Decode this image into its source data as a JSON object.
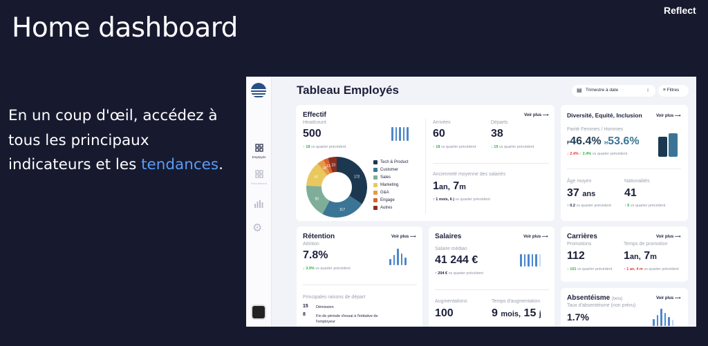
{
  "page": {
    "title": "Home dashboard",
    "brand": "Reflect",
    "tagline_prefix": "En un coup d'œil, accédez à tous les principaux indicateurs et les ",
    "tagline_highlight": "tendances",
    "tagline_suffix": "."
  },
  "app": {
    "title": "Tableau Employés",
    "period_select": "Trimestre à date",
    "filters": "Filtres",
    "sidebar": [
      {
        "label": "Employés",
        "icon": "grid-icon",
        "active": true
      },
      {
        "label": "Recrutement",
        "icon": "grid-icon",
        "active": false
      },
      {
        "label": "",
        "icon": "bar-chart-icon"
      },
      {
        "label": "",
        "icon": "gear-icon"
      }
    ],
    "see_more": "Voir plus",
    "vs": "vs quarter précédent",
    "effectif": {
      "title": "Effectif",
      "headcount_label": "Headcount",
      "headcount": "500",
      "headcount_delta": "18",
      "arrivals_label": "Arrivées",
      "arrivals": "60",
      "arrivals_delta": "18",
      "departures_label": "Départs",
      "departures": "38",
      "departures_delta": "19",
      "seniority_label": "Ancienneté moyenne des salariés",
      "seniority_num1": "1",
      "seniority_unit1": "an,",
      "seniority_num2": "7",
      "seniority_unit2": "m",
      "seniority_delta": "1 mois, 6 j",
      "donut": [
        {
          "label": "Tech & Product",
          "value": 172,
          "color": "#1c3850"
        },
        {
          "label": "Customer",
          "value": 117,
          "color": "#3b7596"
        },
        {
          "label": "Sales",
          "value": 90,
          "color": "#7fae98"
        },
        {
          "label": "Marketing",
          "value": 67,
          "color": "#e9c85e"
        },
        {
          "label": "G&A",
          "value": 18,
          "color": "#e79a45"
        },
        {
          "label": "Engage",
          "value": 13,
          "color": "#d9612f"
        },
        {
          "label": "Autres",
          "value": 23,
          "color": "#8c2f1f"
        }
      ]
    },
    "dei": {
      "title": "Diversité, Equité, Inclusion",
      "parity_label": "Parité Femmes / Hommes",
      "f_prefix": "F",
      "f_value": "46.4%",
      "h_prefix": "H",
      "h_value": "53.6%",
      "f_delta": "2.4%",
      "h_delta": "2.4%",
      "age_label": "Âge moyen",
      "age": "37",
      "age_unit": "ans",
      "age_delta": "0.2",
      "nat_label": "Nationalités",
      "nat": "41",
      "nat_delta": "5"
    },
    "retention": {
      "title": "Rétention",
      "attrition_label": "Attrition",
      "attrition": "7.8%",
      "attrition_delta": "3.9%",
      "reasons_label": "Principales raisons de départ",
      "reasons": [
        {
          "count": "15",
          "label": "Démission"
        },
        {
          "count": "8",
          "label": "Fin de période d'essai à l'initiative de l'employeur"
        }
      ]
    },
    "salaires": {
      "title": "Salaires",
      "median_label": "Salaire médian",
      "median": "41 244 €",
      "median_delta": "204 €",
      "raises_label": "Augmentations",
      "raises": "100",
      "raise_time_label": "Temps d'augmentation",
      "raise_time_num1": "9",
      "raise_time_unit1": "mois,",
      "raise_time_num2": "15",
      "raise_time_unit2": "j"
    },
    "carrieres": {
      "title": "Carrières",
      "promotions_label": "Promotions",
      "promotions": "112",
      "promotions_delta": "101",
      "promo_time_label": "Temps de promotion",
      "promo_time_num1": "1",
      "promo_time_unit1": "an,",
      "promo_time_num2": "7",
      "promo_time_unit2": "m",
      "promo_time_delta": "1 an, 4 m"
    },
    "absenteisme": {
      "title": "Absentéisme",
      "beta": "[beta]",
      "rate_label": "Taux d'absentéisme (non prévu)",
      "rate": "1.7%"
    },
    "colors": {
      "up": "#2fae4b",
      "down": "#e2363b",
      "accent": "#4c87cc",
      "tendances": "#5b9cf5"
    }
  }
}
